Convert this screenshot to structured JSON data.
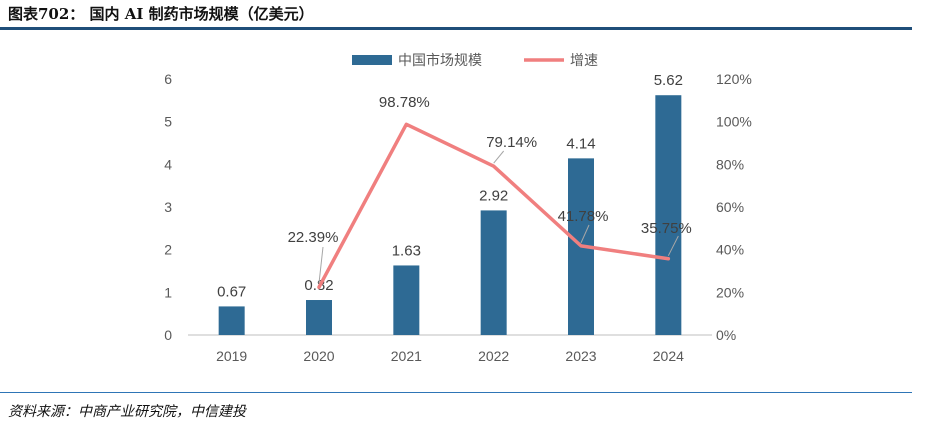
{
  "header": {
    "title": "图表702：  国内 AI 制药市场规模（亿美元）"
  },
  "footer": {
    "source": "资料来源：中商产业研究院，中信建投"
  },
  "colors": {
    "bar": "#2e6a94",
    "line": "#f07f7f",
    "rule": "#1f4e79",
    "grid": "#d9d9d9"
  },
  "chart_data": {
    "type": "bar",
    "categories": [
      "2019",
      "2020",
      "2021",
      "2022",
      "2023",
      "2024"
    ],
    "series": [
      {
        "name": "中国市场规模",
        "type": "bar",
        "axis": "left",
        "values": [
          0.67,
          0.82,
          1.63,
          2.92,
          4.14,
          5.62
        ],
        "labels": [
          "0.67",
          "0.82",
          "1.63",
          "2.92",
          "4.14",
          "5.62"
        ]
      },
      {
        "name": "增速",
        "type": "line",
        "axis": "right",
        "values": [
          null,
          22.39,
          98.78,
          79.14,
          41.78,
          35.75
        ],
        "labels": [
          "",
          "22.39%",
          "98.78%",
          "79.14%",
          "41.78%",
          "35.75%"
        ]
      }
    ],
    "ylim": [
      0,
      6
    ],
    "yticks": [
      "0",
      "1",
      "2",
      "3",
      "4",
      "5",
      "6"
    ],
    "y2lim": [
      0,
      120
    ],
    "y2ticks": [
      "0%",
      "20%",
      "40%",
      "60%",
      "80%",
      "100%",
      "120%"
    ],
    "legend_position": "top",
    "grid": false
  }
}
